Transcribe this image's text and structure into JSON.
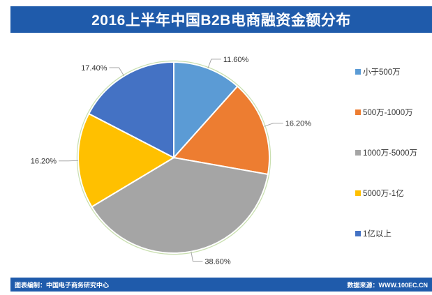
{
  "chart_data": {
    "type": "pie",
    "title": "2016上半年中国B2B电商融资金额分布",
    "categories": [
      "小于500万",
      "500万-1000万",
      "1000万-5000万",
      "5000万-1亿",
      "1亿以上"
    ],
    "values": [
      11.6,
      16.2,
      38.6,
      16.2,
      17.4
    ],
    "value_labels": [
      "11.60%",
      "16.20%",
      "38.60%",
      "16.20%",
      "17.40%"
    ],
    "colors": [
      "#5b9bd5",
      "#ed7d31",
      "#a5a5a5",
      "#ffc000",
      "#4472c4"
    ],
    "legend_position": "right"
  },
  "footer": {
    "left": "图表编制：中国电子商务研究中心",
    "right": "数据来源：WWW.100EC.CN"
  }
}
